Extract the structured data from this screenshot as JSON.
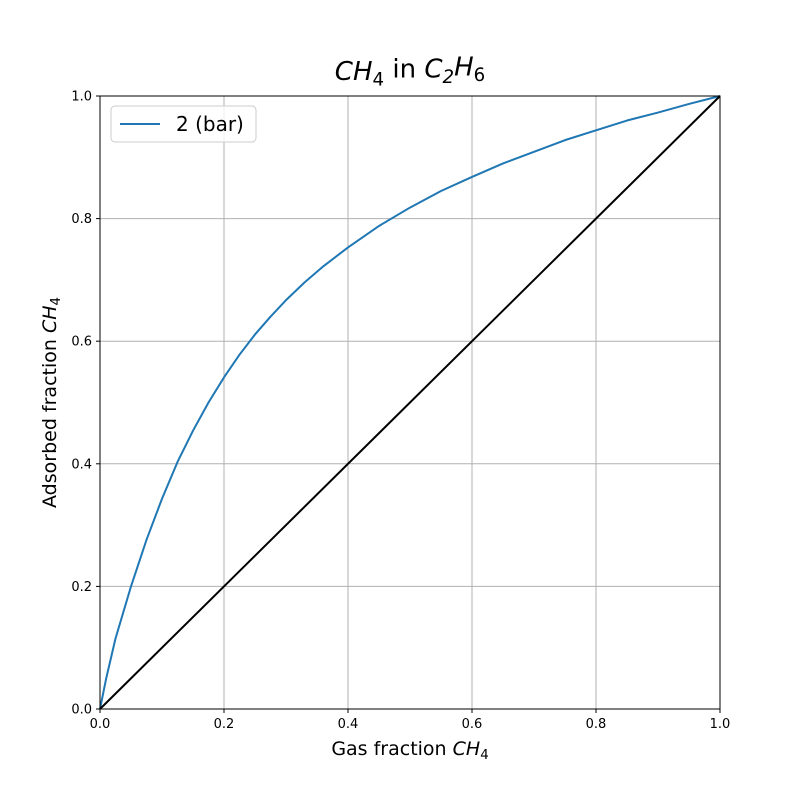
{
  "chart_data": {
    "type": "line",
    "title_parts": [
      {
        "text": "CH",
        "style": "italic"
      },
      {
        "text": "4",
        "style": "sub"
      },
      {
        "text": " in ",
        "style": "normal"
      },
      {
        "text": "C",
        "style": "italic"
      },
      {
        "text": "2",
        "style": "sub-italic"
      },
      {
        "text": "H",
        "style": "italic"
      },
      {
        "text": "6",
        "style": "sub"
      }
    ],
    "xlabel_parts": [
      {
        "text": "Gas fraction ",
        "style": "normal"
      },
      {
        "text": "CH",
        "style": "italic"
      },
      {
        "text": "4",
        "style": "sub"
      }
    ],
    "ylabel_parts": [
      {
        "text": "Adsorbed fraction ",
        "style": "normal"
      },
      {
        "text": "CH",
        "style": "italic"
      },
      {
        "text": "4",
        "style": "sub"
      }
    ],
    "xlim": [
      0.0,
      1.0
    ],
    "ylim": [
      0.0,
      1.0
    ],
    "x_ticks": [
      "0.0",
      "0.2",
      "0.4",
      "0.6",
      "0.8",
      "1.0"
    ],
    "y_ticks": [
      "0.0",
      "0.2",
      "0.4",
      "0.6",
      "0.8",
      "1.0"
    ],
    "grid": true,
    "legend": {
      "placement": "top-left",
      "entries": [
        "2 (bar)"
      ]
    },
    "series": [
      {
        "name": "2 (bar)",
        "color": "#1f77b4",
        "x": [
          0.0,
          0.01,
          0.025,
          0.05,
          0.075,
          0.1,
          0.125,
          0.15,
          0.175,
          0.2,
          0.225,
          0.25,
          0.275,
          0.3,
          0.33,
          0.36,
          0.4,
          0.45,
          0.5,
          0.55,
          0.6,
          0.65,
          0.7,
          0.75,
          0.8,
          0.85,
          0.9,
          0.95,
          1.0
        ],
        "y": [
          0.0,
          0.05,
          0.115,
          0.2,
          0.276,
          0.343,
          0.403,
          0.454,
          0.5,
          0.541,
          0.578,
          0.611,
          0.64,
          0.667,
          0.696,
          0.722,
          0.753,
          0.788,
          0.818,
          0.845,
          0.868,
          0.89,
          0.909,
          0.928,
          0.944,
          0.96,
          0.973,
          0.987,
          1.0
        ]
      },
      {
        "color": "#000000",
        "x": [
          0.0,
          1.0
        ],
        "y": [
          0.0,
          1.0
        ]
      }
    ]
  }
}
